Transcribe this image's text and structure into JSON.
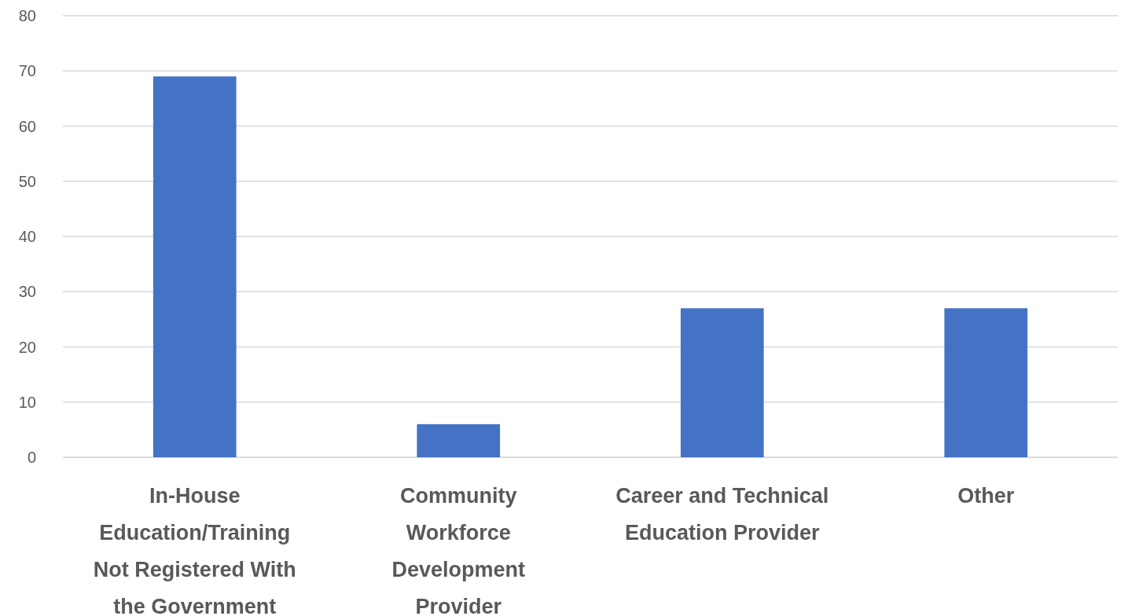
{
  "chart_data": {
    "type": "bar",
    "categories": [
      "In-House Education/Training Not Registered With the Government",
      "Community Workforce Development Provider",
      "Career and Technical Education Provider",
      "Other"
    ],
    "values": [
      69,
      6,
      27,
      27
    ],
    "color": "#4472c4",
    "ylim": [
      0,
      80
    ],
    "yticks": [
      0,
      10,
      20,
      30,
      40,
      50,
      60,
      70,
      80
    ],
    "grid": "y"
  }
}
